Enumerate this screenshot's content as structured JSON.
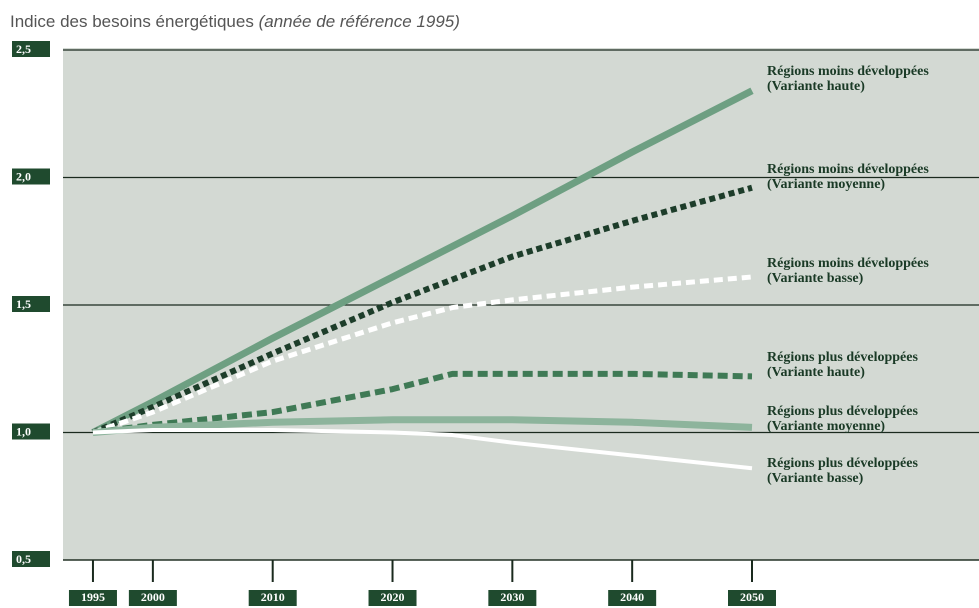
{
  "chart_data": {
    "type": "line",
    "title": "Indice des besoins énergétiques",
    "subtitle": "(année de référence 1995)",
    "x": [
      1995,
      2000,
      2010,
      2020,
      2025,
      2030,
      2040,
      2050
    ],
    "xlim": [
      1992.5,
      2050
    ],
    "xticks": [
      1995,
      2000,
      2010,
      2020,
      2030,
      2040,
      2050
    ],
    "ylim": [
      0.5,
      2.5
    ],
    "yticks": [
      {
        "value": 0.5,
        "label": "0,5"
      },
      {
        "value": 1.0,
        "label": "1,0"
      },
      {
        "value": 1.5,
        "label": "1,5"
      },
      {
        "value": 2.0,
        "label": "2,0"
      },
      {
        "value": 2.5,
        "label": "2,5"
      }
    ],
    "grid": true,
    "series": [
      {
        "name": "Régions moins développées (Variante haute)",
        "color": "#6e9f82",
        "values": [
          1.0,
          1.12,
          1.37,
          1.61,
          1.73,
          1.85,
          2.1,
          2.34
        ]
      },
      {
        "name": "Régions moins développées (Variante moyenne)",
        "color": "#1d3d2a",
        "values": [
          1.0,
          1.1,
          1.31,
          1.51,
          1.6,
          1.69,
          1.83,
          1.96
        ]
      },
      {
        "name": "Régions moins développées (Variante basse)",
        "color": "#ffffff",
        "values": [
          1.0,
          1.08,
          1.28,
          1.43,
          1.49,
          1.52,
          1.57,
          1.61
        ]
      },
      {
        "name": "Régions plus développées (Variante haute)",
        "color": "#3f7a55",
        "values": [
          1.0,
          1.03,
          1.08,
          1.17,
          1.23,
          1.23,
          1.23,
          1.22
        ]
      },
      {
        "name": "Régions plus développées (Variante moyenne)",
        "color": "#8db49c",
        "values": [
          1.0,
          1.02,
          1.04,
          1.05,
          1.05,
          1.05,
          1.04,
          1.02
        ]
      },
      {
        "name": "Régions plus développées (Variante basse)",
        "color": "#ffffff",
        "values": [
          1.0,
          1.01,
          1.01,
          1.0,
          0.99,
          0.96,
          0.91,
          0.86
        ]
      }
    ]
  }
}
